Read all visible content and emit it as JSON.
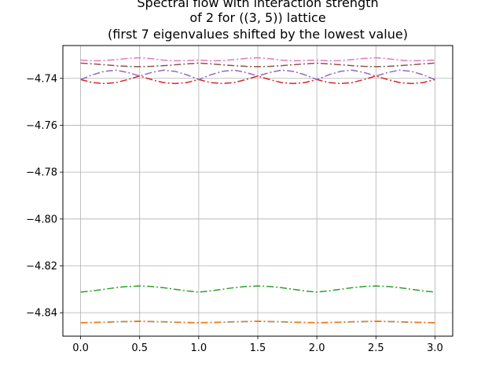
{
  "chart_data": {
    "type": "line",
    "title_lines": [
      "Spectral flow with interaction strength",
      "of 2 for ((3, 5)) lattice",
      "(first 7 eigenvalues shifted by the lowest value)"
    ],
    "xlabel": "",
    "ylabel": "",
    "xlim": [
      -0.15,
      3.15
    ],
    "ylim": [
      -4.85,
      -4.726
    ],
    "x_ticks": [
      0.0,
      0.5,
      1.0,
      1.5,
      2.0,
      2.5,
      3.0
    ],
    "x_tick_labels": [
      "0.0",
      "0.5",
      "1.0",
      "1.5",
      "2.0",
      "2.5",
      "3.0"
    ],
    "y_ticks": [
      -4.84,
      -4.82,
      -4.8,
      -4.78,
      -4.76,
      -4.74
    ],
    "y_tick_labels": [
      "−4.84",
      "−4.82",
      "−4.80",
      "−4.78",
      "−4.76",
      "−4.74"
    ],
    "grid": true,
    "line_style": "dash-dot",
    "x": [
      0.0,
      0.1,
      0.2,
      0.3,
      0.4,
      0.5,
      0.6,
      0.7,
      0.8,
      0.9,
      1.0,
      1.1,
      1.2,
      1.3,
      1.4,
      1.5,
      1.6,
      1.7,
      1.8,
      1.9,
      2.0,
      2.1,
      2.2,
      2.3,
      2.4,
      2.5,
      2.6,
      2.7,
      2.8,
      2.9,
      3.0
    ],
    "series": [
      {
        "color": "#1f77b4",
        "values": [
          -4.8443,
          -4.8442,
          -4.8441,
          -4.8439,
          -4.8438,
          -4.8437,
          -4.8438,
          -4.8439,
          -4.8441,
          -4.8442,
          -4.8443,
          -4.8442,
          -4.8441,
          -4.8439,
          -4.8438,
          -4.8437,
          -4.8438,
          -4.8439,
          -4.8441,
          -4.8442,
          -4.8443,
          -4.8442,
          -4.8441,
          -4.8439,
          -4.8438,
          -4.8437,
          -4.8438,
          -4.8439,
          -4.8441,
          -4.8442,
          -4.8443
        ]
      },
      {
        "color": "#ff7f0e",
        "values": [
          -4.8442,
          -4.8441,
          -4.844,
          -4.8438,
          -4.8437,
          -4.8436,
          -4.8437,
          -4.8438,
          -4.844,
          -4.8441,
          -4.8442,
          -4.8441,
          -4.844,
          -4.8438,
          -4.8437,
          -4.8436,
          -4.8437,
          -4.8438,
          -4.844,
          -4.8441,
          -4.8442,
          -4.8441,
          -4.844,
          -4.8438,
          -4.8437,
          -4.8436,
          -4.8437,
          -4.8438,
          -4.844,
          -4.8441,
          -4.8442
        ]
      },
      {
        "color": "#2ca02c",
        "values": [
          -4.8312,
          -4.8307,
          -4.83,
          -4.8293,
          -4.8288,
          -4.8286,
          -4.8288,
          -4.8293,
          -4.83,
          -4.8307,
          -4.8312,
          -4.8307,
          -4.83,
          -4.8293,
          -4.8288,
          -4.8286,
          -4.8288,
          -4.8293,
          -4.83,
          -4.8307,
          -4.8312,
          -4.8307,
          -4.83,
          -4.8293,
          -4.8288,
          -4.8286,
          -4.8288,
          -4.8293,
          -4.83,
          -4.8307,
          -4.8312
        ]
      },
      {
        "color": "#d62728",
        "values": [
          -4.7405,
          -4.7418,
          -4.7422,
          -4.7418,
          -4.7405,
          -4.739,
          -4.7405,
          -4.7418,
          -4.7422,
          -4.7418,
          -4.7405,
          -4.7418,
          -4.7422,
          -4.7418,
          -4.7405,
          -4.739,
          -4.7405,
          -4.7418,
          -4.7422,
          -4.7418,
          -4.7405,
          -4.7418,
          -4.7422,
          -4.7418,
          -4.7405,
          -4.739,
          -4.7405,
          -4.7418,
          -4.7422,
          -4.7418,
          -4.7405
        ]
      },
      {
        "color": "#9467bd",
        "values": [
          -4.7405,
          -4.7385,
          -4.737,
          -4.7365,
          -4.7375,
          -4.739,
          -4.7375,
          -4.7365,
          -4.737,
          -4.7385,
          -4.7405,
          -4.7385,
          -4.737,
          -4.7365,
          -4.7375,
          -4.739,
          -4.7375,
          -4.7365,
          -4.737,
          -4.7385,
          -4.7405,
          -4.7385,
          -4.737,
          -4.7365,
          -4.7375,
          -4.739,
          -4.7375,
          -4.7365,
          -4.737,
          -4.7385,
          -4.7405
        ]
      },
      {
        "color": "#8c564b",
        "values": [
          -4.7335,
          -4.7338,
          -4.7342,
          -4.7346,
          -4.7349,
          -4.735,
          -4.7349,
          -4.7346,
          -4.7342,
          -4.7338,
          -4.7335,
          -4.7338,
          -4.7342,
          -4.7346,
          -4.7349,
          -4.735,
          -4.7349,
          -4.7346,
          -4.7342,
          -4.7338,
          -4.7335,
          -4.7338,
          -4.7342,
          -4.7346,
          -4.7349,
          -4.735,
          -4.7349,
          -4.7346,
          -4.7342,
          -4.7338,
          -4.7335
        ]
      },
      {
        "color": "#e377c2",
        "values": [
          -4.7322,
          -4.7325,
          -4.7324,
          -4.732,
          -4.7315,
          -4.7312,
          -4.7316,
          -4.7322,
          -4.7325,
          -4.7324,
          -4.7322,
          -4.7325,
          -4.7324,
          -4.732,
          -4.7315,
          -4.7312,
          -4.7316,
          -4.7322,
          -4.7325,
          -4.7324,
          -4.7322,
          -4.7325,
          -4.7324,
          -4.732,
          -4.7315,
          -4.7312,
          -4.7316,
          -4.7322,
          -4.7325,
          -4.7324,
          -4.7322
        ]
      }
    ]
  }
}
